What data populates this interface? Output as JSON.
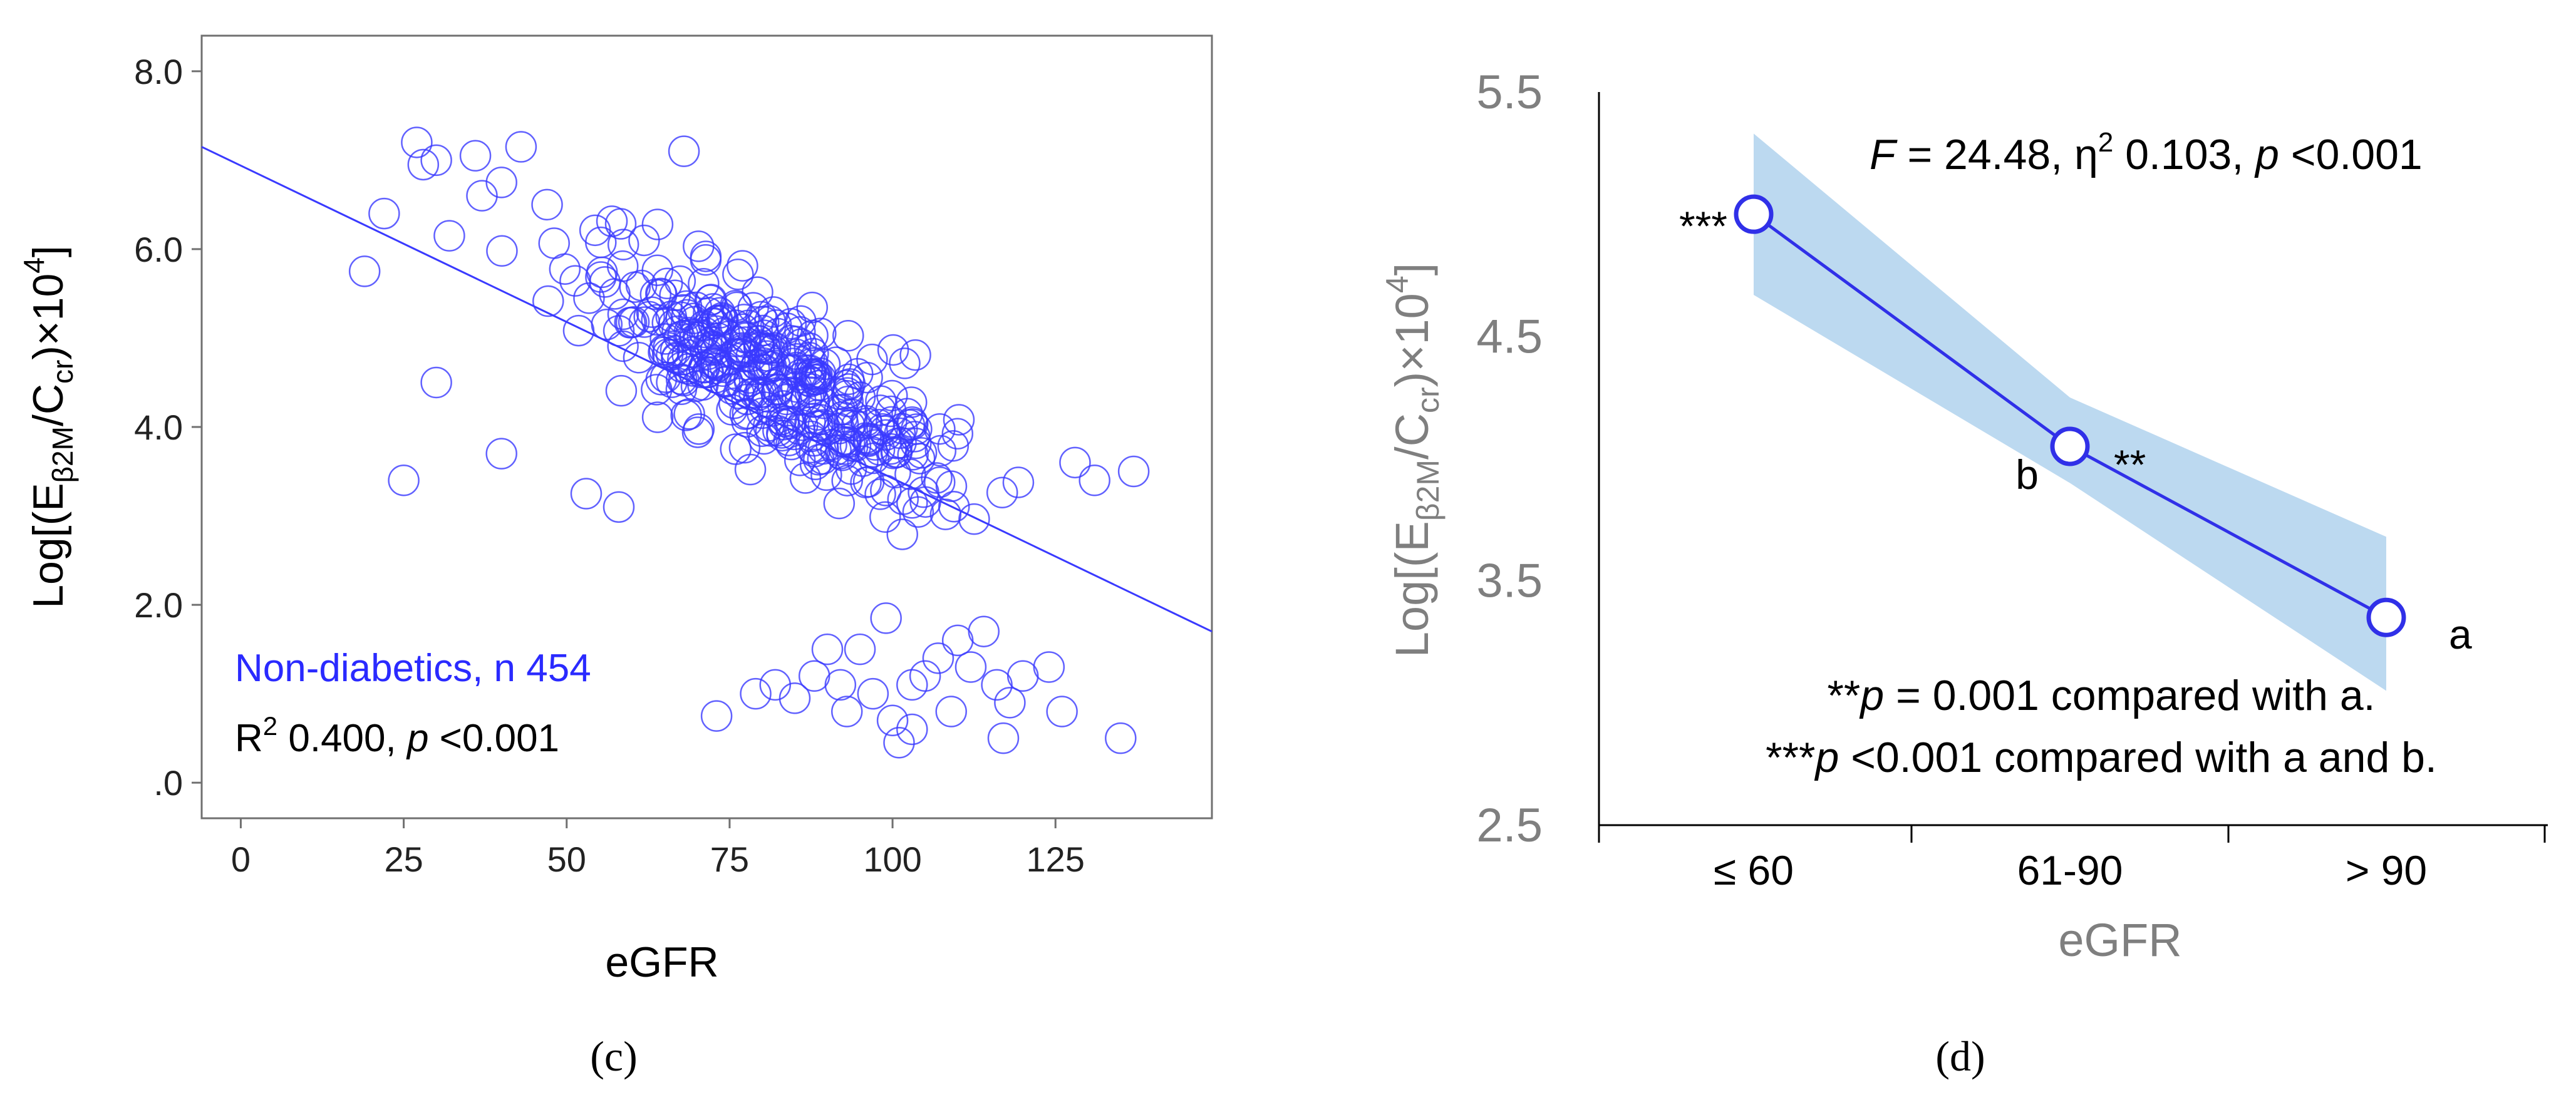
{
  "chart_data": [
    {
      "panel": "(c)",
      "type": "scatter",
      "xlabel": "eGFR",
      "ylabel": "Log[(Eβ2M/Ccr)×10⁴]",
      "ylabel_parts": {
        "pre": "Log[(E",
        "sub1": "β2M",
        "mid": "/C",
        "sub2": "cr",
        "post": ")×10",
        "sup": "4",
        "end": "]"
      },
      "xlim": [
        -6,
        149
      ],
      "ylim": [
        -0.4,
        8.4
      ],
      "x_ticks": [
        0,
        25,
        50,
        75,
        100,
        125
      ],
      "x_tick_labels": [
        "0",
        "25",
        "50",
        "75",
        "100",
        "125"
      ],
      "y_ticks": [
        0,
        2,
        4,
        6,
        8
      ],
      "y_tick_labels": [
        ".0",
        "2.0",
        "4.0",
        "6.0",
        "8.0"
      ],
      "grid": false,
      "legend_text": "Non-diabetics, n 454",
      "stats_parts": {
        "r": "R",
        "sup": "2",
        "val": " 0.400, ",
        "p": "p",
        "rest": " <0.001"
      },
      "fit_line": {
        "x": [
          -6,
          149
        ],
        "y": [
          7.15,
          1.7
        ]
      },
      "series": [
        {
          "name": "Non-diabetics",
          "color": "#3a3aff",
          "n": 454
        }
      ],
      "cluster_points": [
        {
          "x": 27,
          "y": 7.2
        },
        {
          "x": 30,
          "y": 7.0
        },
        {
          "x": 36,
          "y": 7.05
        },
        {
          "x": 43,
          "y": 7.15
        },
        {
          "x": 68,
          "y": 7.1
        },
        {
          "x": 40,
          "y": 6.75
        },
        {
          "x": 37,
          "y": 6.6
        },
        {
          "x": 28,
          "y": 6.95
        },
        {
          "x": 22,
          "y": 6.4
        },
        {
          "x": 19,
          "y": 5.75
        },
        {
          "x": 32,
          "y": 6.15
        },
        {
          "x": 47,
          "y": 6.5
        },
        {
          "x": 25,
          "y": 3.4
        },
        {
          "x": 30,
          "y": 4.5
        },
        {
          "x": 40,
          "y": 3.7
        },
        {
          "x": 53,
          "y": 3.25
        },
        {
          "x": 58,
          "y": 3.1
        },
        {
          "x": 137,
          "y": 3.5
        },
        {
          "x": 131,
          "y": 3.4
        },
        {
          "x": 128,
          "y": 3.6
        }
      ],
      "low_points": [
        {
          "x": 73,
          "y": 0.75
        },
        {
          "x": 79,
          "y": 1.0
        },
        {
          "x": 82,
          "y": 1.1
        },
        {
          "x": 85,
          "y": 0.95
        },
        {
          "x": 90,
          "y": 1.5
        },
        {
          "x": 92,
          "y": 1.1
        },
        {
          "x": 95,
          "y": 1.5
        },
        {
          "x": 99,
          "y": 1.85
        },
        {
          "x": 100,
          "y": 0.7
        },
        {
          "x": 101,
          "y": 0.45
        },
        {
          "x": 103,
          "y": 0.6
        },
        {
          "x": 105,
          "y": 1.2
        },
        {
          "x": 107,
          "y": 1.4
        },
        {
          "x": 109,
          "y": 0.8
        },
        {
          "x": 112,
          "y": 1.3
        },
        {
          "x": 114,
          "y": 1.7
        },
        {
          "x": 116,
          "y": 1.1
        },
        {
          "x": 117,
          "y": 0.5
        },
        {
          "x": 120,
          "y": 1.2
        },
        {
          "x": 124,
          "y": 1.3
        },
        {
          "x": 126,
          "y": 0.8
        },
        {
          "x": 135,
          "y": 0.5
        },
        {
          "x": 97,
          "y": 1.0
        },
        {
          "x": 88,
          "y": 1.2
        },
        {
          "x": 103,
          "y": 1.1
        },
        {
          "x": 110,
          "y": 1.6
        },
        {
          "x": 118,
          "y": 0.9
        },
        {
          "x": 93,
          "y": 0.8
        }
      ]
    },
    {
      "panel": "(d)",
      "type": "line",
      "xlabel": "eGFR",
      "ylabel": "Log[(Eβ2M/Ccr)×10⁴]",
      "ylabel_parts": {
        "pre": "Log[(E",
        "sub1": "β2M",
        "mid": "/C",
        "sub2": "cr",
        "post": ")×10",
        "sup": "4",
        "end": "]"
      },
      "categories": [
        "≤ 60",
        "61-90",
        "> 90"
      ],
      "values": [
        5.0,
        4.05,
        3.35
      ],
      "ci_upper": [
        5.33,
        4.25,
        3.68
      ],
      "ci_lower": [
        4.67,
        3.9,
        3.05
      ],
      "point_labels": [
        "***",
        "b",
        "a"
      ],
      "extra_marks": [
        "**"
      ],
      "ylim": [
        2.5,
        5.5
      ],
      "y_ticks": [
        2.5,
        3.5,
        4.5,
        5.5
      ],
      "y_tick_labels": [
        "2.5",
        "3.5",
        "4.5",
        "5.5"
      ],
      "grid": false,
      "stat_parts": {
        "f": "F",
        "f_val": " = 24.48, η",
        "sup": "2",
        "eta_val": " 0.103, ",
        "p": "p",
        "p_val": " <0.001"
      },
      "note1": {
        "stars": "**",
        "p": "p",
        "rest": " = 0.001 compared with a."
      },
      "note2": {
        "stars": "***",
        "p": "p",
        "rest": " <0.001 compared with a and b."
      },
      "line_color": "#3030e8",
      "band_color": "#bcd9f0"
    }
  ],
  "captions": [
    "(c)",
    "(d)"
  ]
}
